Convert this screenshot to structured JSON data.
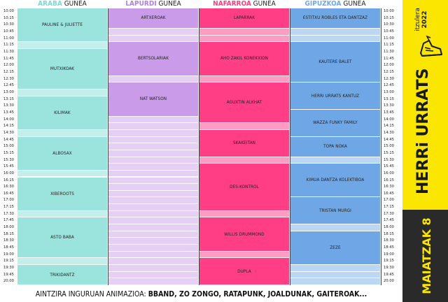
{
  "areas": [
    {
      "name": "ARABA",
      "suffix": " GUNEA",
      "color": "#9be3dd",
      "text_color": "#7fd7d0",
      "light": "#c3efeb"
    },
    {
      "name": "LAPURDI",
      "suffix": " GUNEA",
      "color": "#c99be8",
      "text_color": "#b27ee0",
      "light": "#e6cff5"
    },
    {
      "name": "NAFARROA",
      "suffix": " GUNEA",
      "color": "#ff3e86",
      "text_color": "#ff3e86",
      "light": "#ff9cc1"
    },
    {
      "name": "GIPUZKOA",
      "suffix": " GUNEA",
      "color": "#6fa7e6",
      "text_color": "#6fa7e6",
      "light": "#bcd7f4"
    }
  ],
  "times": [
    "10:00",
    "10:15",
    "10:30",
    "10:45",
    "11:00",
    "11:15",
    "11:30",
    "11:45",
    "12:00",
    "12:15",
    "12:30",
    "12:45",
    "13:00",
    "13:15",
    "13:30",
    "13:45",
    "14:00",
    "14:15",
    "14:30",
    "14:45",
    "15:00",
    "15:15",
    "15:30",
    "15:45",
    "16:00",
    "16:15",
    "16:30",
    "16:45",
    "17:00",
    "17:15",
    "17:30",
    "17:45",
    "18:00",
    "18:15",
    "18:30",
    "18:45",
    "19:00",
    "19:15",
    "19:30",
    "19:45",
    "20:00"
  ],
  "schedule": {
    "araba": [
      {
        "label": "PAULINE & JULIETTE",
        "start": 0,
        "end": 5
      },
      {
        "label": "MUTXIKOAK",
        "start": 6,
        "end": 12
      },
      {
        "label": "KILIMAK",
        "start": 13,
        "end": 18
      },
      {
        "label": "ALBOSAX",
        "start": 19,
        "end": 24
      },
      {
        "label": "XIBEROOTS",
        "start": 25,
        "end": 30
      },
      {
        "label": "ASTO BABA",
        "start": 31,
        "end": 37
      },
      {
        "label": "TRIKIDANTZ",
        "start": 38,
        "end": 42
      }
    ],
    "lapurdi": [
      {
        "label": "ARTXEROAK",
        "start": 0,
        "end": 3
      },
      {
        "label": "BERTSOLARIAK",
        "start": 5,
        "end": 10
      },
      {
        "label": "NAT WATSON",
        "start": 11,
        "end": 16
      }
    ],
    "nafarroa": [
      {
        "label": "LAPARRAK",
        "start": 0,
        "end": 3
      },
      {
        "label": "AHO ZAKIL KONEKXION",
        "start": 5,
        "end": 10
      },
      {
        "label": "AGUXTIN ALKHAT",
        "start": 11,
        "end": 17
      },
      {
        "label": "SKAKEITAN",
        "start": 18,
        "end": 22
      },
      {
        "label": "DES-KONTROL",
        "start": 23,
        "end": 30
      },
      {
        "label": "WILLIS DRUMMOND",
        "start": 31,
        "end": 36
      },
      {
        "label": "DUPLA",
        "start": 37,
        "end": 42
      }
    ],
    "gipuzkoa": [
      {
        "label": "ESTITXU ROBLES ETA DANTZAZ",
        "start": 0,
        "end": 3
      },
      {
        "label": "KAUTERE BALET",
        "start": 5,
        "end": 11
      },
      {
        "label": "HERRI URRATS KANTUZ",
        "start": 11,
        "end": 15
      },
      {
        "label": "WAZZA FUNKY FAMILY",
        "start": 15,
        "end": 19
      },
      {
        "label": "TOPA NOKA",
        "start": 19,
        "end": 22
      },
      {
        "label": "KIMUA DANTZA KOLEKTIBOA",
        "start": 23,
        "end": 28
      },
      {
        "label": "TRISTAN MURGI",
        "start": 28,
        "end": 32
      },
      {
        "label": "ZEZE",
        "start": 33,
        "end": 38
      }
    ]
  },
  "footer": {
    "prefix": "AINTZIRA INGURUAN ANIMAZIOA: ",
    "acts": "BBAND, ZO ZONGO, RATAPUNK, JOALDUNAK, GAITEROAK..."
  },
  "side": {
    "brand": "HERRi URRATS",
    "tour": "itzulera",
    "year": "2022",
    "date": "MAIATZAK 8",
    "yellow": "#fae600",
    "dark": "#2a2a2a"
  }
}
